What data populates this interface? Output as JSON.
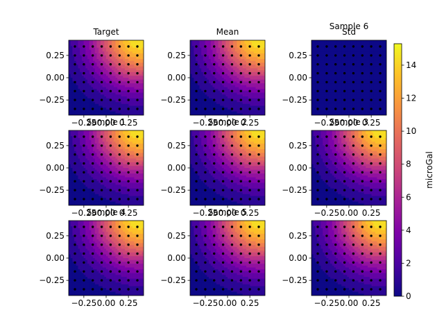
{
  "chart_data": {
    "type": "heatmap",
    "colormap": "plasma",
    "colorbar": {
      "label": "microGal",
      "min": 0,
      "max": 15.3,
      "ticks": [
        0,
        2,
        4,
        6,
        8,
        10,
        12,
        14
      ]
    },
    "x_ticks": [
      -0.25,
      0.0,
      0.25
    ],
    "y_ticks": [
      0.25,
      0.0,
      -0.25
    ],
    "x_tick_labels": [
      "−0.25",
      "0.00",
      "0.25"
    ],
    "y_tick_labels": [
      "0.25",
      "0.00",
      "−0.25"
    ],
    "xlim": [
      -0.42,
      0.42
    ],
    "ylim": [
      -0.42,
      0.42
    ],
    "stations": {
      "x": [
        -0.35,
        -0.25,
        -0.15,
        -0.05,
        0.05,
        0.15,
        0.25,
        0.35
      ],
      "y": [
        -0.35,
        -0.25,
        -0.15,
        -0.05,
        0.05,
        0.15,
        0.25,
        0.35
      ]
    },
    "source": {
      "x": 0.38,
      "y": 0.46,
      "peak": 15.3,
      "width": 0.38
    },
    "panels": [
      {
        "title": "Target",
        "kind": "field",
        "row": 0,
        "col": 0
      },
      {
        "title": "Mean",
        "kind": "field",
        "row": 0,
        "col": 1
      },
      {
        "title": "Std",
        "kind": "std",
        "value": 0.4,
        "row": 0,
        "col": 2
      },
      {
        "title": "Sample 6",
        "kind": "label",
        "row": 0,
        "col": 2
      },
      {
        "title": "Sample 1",
        "kind": "field",
        "row": 1,
        "col": 0
      },
      {
        "title": "Sample 2",
        "kind": "field",
        "row": 1,
        "col": 1
      },
      {
        "title": "Sample 3",
        "kind": "field",
        "row": 1,
        "col": 2
      },
      {
        "title": "Sample 4",
        "kind": "field",
        "row": 2,
        "col": 0
      },
      {
        "title": "Sample 5",
        "kind": "field",
        "row": 2,
        "col": 1
      },
      {
        "title": "",
        "kind": "field",
        "row": 2,
        "col": 2
      }
    ]
  }
}
